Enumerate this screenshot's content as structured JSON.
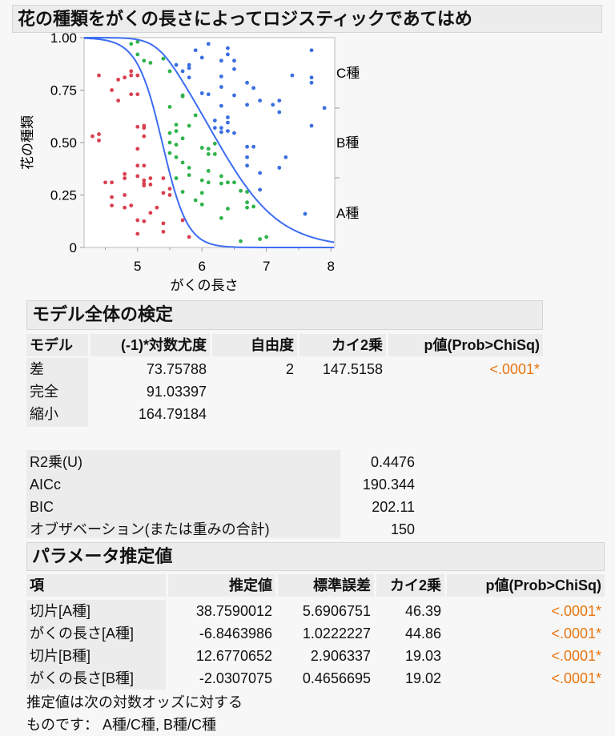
{
  "title": "花の種類をがくの長さによってロジスティックであてはめ",
  "chart_data": {
    "type": "scatter",
    "xlabel": "がくの長さ",
    "ylabel": "花の種類",
    "xlim": [
      4.17,
      8.06
    ],
    "ylim": [
      0,
      1
    ],
    "x_ticks": [
      "5",
      "6",
      "7",
      "8"
    ],
    "y_ticks": [
      "0",
      "0.25",
      "0.50",
      "0.75",
      "1.00"
    ],
    "right_labels": [
      "C種",
      "B種",
      "A種"
    ],
    "curve_color": "#3d6df2",
    "series": [
      {
        "name": "A種",
        "color": "#d9404f",
        "points": [
          [
            4.4,
            0.82
          ],
          [
            4.6,
            0.75
          ],
          [
            4.7,
            0.8
          ],
          [
            4.8,
            0.81
          ],
          [
            4.9,
            0.84
          ],
          [
            4.9,
            0.82
          ],
          [
            5.0,
            0.82
          ],
          [
            4.7,
            0.7
          ],
          [
            4.9,
            0.73
          ],
          [
            5.0,
            0.73
          ],
          [
            4.3,
            0.53
          ],
          [
            4.4,
            0.54
          ],
          [
            4.4,
            0.51
          ],
          [
            5.0,
            0.575
          ],
          [
            5.1,
            0.58
          ],
          [
            5.1,
            0.57
          ],
          [
            5.1,
            0.53
          ],
          [
            5.0,
            0.47
          ],
          [
            5.0,
            0.39
          ],
          [
            5.1,
            0.39
          ],
          [
            5.0,
            0.34
          ],
          [
            4.8,
            0.35
          ],
          [
            4.8,
            0.33
          ],
          [
            4.5,
            0.31
          ],
          [
            4.6,
            0.31
          ],
          [
            5.1,
            0.32
          ],
          [
            5.1,
            0.305
          ],
          [
            5.1,
            0.295
          ],
          [
            5.2,
            0.33
          ],
          [
            5.2,
            0.3
          ],
          [
            5.4,
            0.33
          ],
          [
            5.4,
            0.26
          ],
          [
            5.5,
            0.28
          ],
          [
            5.5,
            0.25
          ],
          [
            4.6,
            0.24
          ],
          [
            4.8,
            0.25
          ],
          [
            4.6,
            0.2
          ],
          [
            4.8,
            0.19
          ],
          [
            4.9,
            0.2
          ],
          [
            5.3,
            0.19
          ],
          [
            5.2,
            0.165
          ],
          [
            5.0,
            0.13
          ],
          [
            5.1,
            0.125
          ],
          [
            5.4,
            0.115
          ],
          [
            5.7,
            0.13
          ],
          [
            5.4,
            0.075
          ],
          [
            5.0,
            0.065
          ],
          [
            5.8,
            0.05
          ]
        ]
      },
      {
        "name": "B種",
        "color": "#2fb34a",
        "points": [
          [
            4.9,
            0.97
          ],
          [
            5.0,
            0.98
          ],
          [
            5.0,
            0.92
          ],
          [
            5.1,
            0.89
          ],
          [
            5.2,
            0.88
          ],
          [
            5.4,
            0.9
          ],
          [
            5.5,
            0.84
          ],
          [
            5.7,
            0.725
          ],
          [
            5.7,
            0.72
          ],
          [
            5.5,
            0.67
          ],
          [
            5.9,
            0.63
          ],
          [
            5.6,
            0.585
          ],
          [
            5.8,
            0.58
          ],
          [
            5.5,
            0.545
          ],
          [
            5.6,
            0.555
          ],
          [
            5.7,
            0.52
          ],
          [
            5.5,
            0.5
          ],
          [
            5.6,
            0.49
          ],
          [
            6.2,
            0.495
          ],
          [
            6.0,
            0.475
          ],
          [
            6.1,
            0.47
          ],
          [
            6.1,
            0.445
          ],
          [
            6.2,
            0.445
          ],
          [
            5.5,
            0.45
          ],
          [
            5.6,
            0.43
          ],
          [
            5.7,
            0.405
          ],
          [
            5.8,
            0.38
          ],
          [
            5.8,
            0.345
          ],
          [
            6.1,
            0.365
          ],
          [
            6.3,
            0.34
          ],
          [
            5.6,
            0.33
          ],
          [
            6.0,
            0.32
          ],
          [
            6.1,
            0.31
          ],
          [
            6.3,
            0.305
          ],
          [
            6.4,
            0.31
          ],
          [
            6.5,
            0.31
          ],
          [
            5.7,
            0.265
          ],
          [
            6.0,
            0.26
          ],
          [
            6.6,
            0.27
          ],
          [
            6.7,
            0.265
          ],
          [
            5.9,
            0.225
          ],
          [
            6.0,
            0.205
          ],
          [
            6.7,
            0.215
          ],
          [
            6.7,
            0.19
          ],
          [
            6.8,
            0.195
          ],
          [
            6.4,
            0.185
          ],
          [
            6.3,
            0.14
          ],
          [
            6.6,
            0.03
          ],
          [
            6.9,
            0.04
          ],
          [
            7.0,
            0.05
          ]
        ]
      },
      {
        "name": "C種",
        "color": "#3a6ee0",
        "points": [
          [
            5.9,
            0.94
          ],
          [
            6.1,
            0.97
          ],
          [
            6.4,
            0.95
          ],
          [
            6.4,
            0.92
          ],
          [
            6.0,
            0.905
          ],
          [
            6.3,
            0.89
          ],
          [
            6.5,
            0.89
          ],
          [
            5.6,
            0.87
          ],
          [
            5.7,
            0.84
          ],
          [
            5.8,
            0.87
          ],
          [
            5.8,
            0.855
          ],
          [
            5.8,
            0.81
          ],
          [
            6.5,
            0.85
          ],
          [
            6.3,
            0.815
          ],
          [
            6.3,
            0.765
          ],
          [
            6.7,
            0.785
          ],
          [
            6.8,
            0.76
          ],
          [
            6.0,
            0.735
          ],
          [
            6.1,
            0.73
          ],
          [
            6.5,
            0.725
          ],
          [
            6.3,
            0.675
          ],
          [
            6.7,
            0.68
          ],
          [
            6.9,
            0.7
          ],
          [
            7.1,
            0.68
          ],
          [
            7.2,
            0.7
          ],
          [
            7.2,
            0.645
          ],
          [
            7.4,
            0.82
          ],
          [
            7.7,
            0.94
          ],
          [
            7.7,
            0.81
          ],
          [
            7.7,
            0.785
          ],
          [
            7.9,
            0.665
          ],
          [
            6.2,
            0.605
          ],
          [
            6.4,
            0.62
          ],
          [
            6.4,
            0.595
          ],
          [
            6.2,
            0.57
          ],
          [
            6.3,
            0.57
          ],
          [
            6.3,
            0.55
          ],
          [
            6.4,
            0.555
          ],
          [
            6.5,
            0.545
          ],
          [
            7.7,
            0.58
          ],
          [
            6.7,
            0.48
          ],
          [
            6.8,
            0.48
          ],
          [
            6.7,
            0.43
          ],
          [
            6.7,
            0.39
          ],
          [
            7.3,
            0.43
          ],
          [
            7.2,
            0.38
          ],
          [
            6.9,
            0.355
          ],
          [
            6.9,
            0.275
          ],
          [
            7.6,
            0.16
          ]
        ]
      }
    ]
  },
  "whole_model": {
    "title": "モデル全体の検定",
    "headers": [
      "モデル",
      "(-1)*対数尤度",
      "自由度",
      "カイ2乗",
      "p値(Prob>ChiSq)"
    ],
    "rows": [
      {
        "model": "差",
        "loglik": "73.75788",
        "df": "2",
        "chisq": "147.5158",
        "p": "<.0001*"
      },
      {
        "model": "完全",
        "loglik": "91.03397"
      },
      {
        "model": "縮小",
        "loglik": "164.79184"
      }
    ],
    "stats": [
      {
        "label": "R2乗(U)",
        "value": "0.4476"
      },
      {
        "label": "AICc",
        "value": "190.344"
      },
      {
        "label": "BIC",
        "value": "202.11"
      },
      {
        "label": "オブザベーション(または重みの合計)",
        "value": "150"
      }
    ]
  },
  "params": {
    "title": "パラメータ推定値",
    "headers": [
      "項",
      "推定値",
      "標準誤差",
      "カイ2乗",
      "p値(Prob>ChiSq)"
    ],
    "rows": [
      {
        "term": "切片[A種]",
        "est": "38.7590012",
        "se": "5.6906751",
        "chisq": "46.39",
        "p": "<.0001*"
      },
      {
        "term": "がくの長さ[A種]",
        "est": "-6.8463986",
        "se": "1.0222227",
        "chisq": "44.86",
        "p": "<.0001*"
      },
      {
        "term": "切片[B種]",
        "est": "12.6770652",
        "se": "2.906337",
        "chisq": "19.03",
        "p": "<.0001*"
      },
      {
        "term": "がくの長さ[B種]",
        "est": "-2.0307075",
        "se": "0.4656695",
        "chisq": "19.02",
        "p": "<.0001*"
      }
    ],
    "note1": "推定値は次の対数オッズに対する",
    "note2": "ものです： A種/C種, B種/C種"
  }
}
